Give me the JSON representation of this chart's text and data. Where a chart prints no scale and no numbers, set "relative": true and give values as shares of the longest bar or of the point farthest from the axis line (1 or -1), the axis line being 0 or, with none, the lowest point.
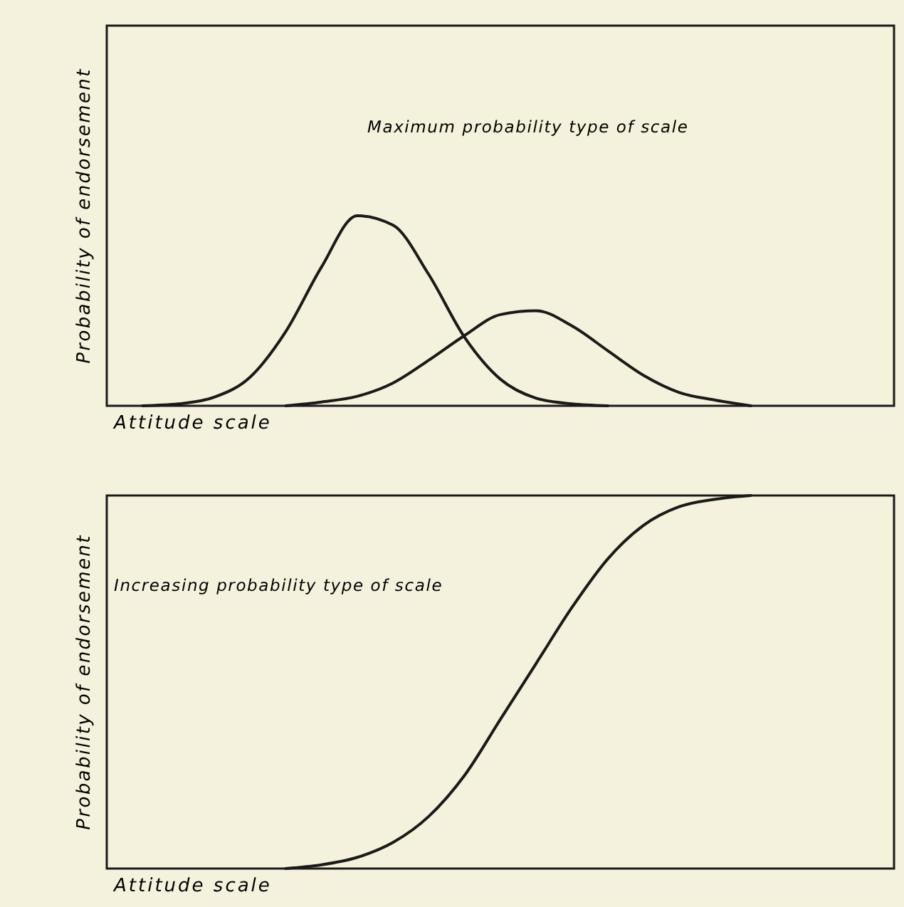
{
  "chart_data": [
    {
      "type": "line",
      "relative": true,
      "categories": [
        null,
        null,
        null,
        null,
        null,
        null,
        null,
        null,
        null,
        null,
        null,
        null,
        null,
        null,
        null,
        null,
        null,
        null,
        null,
        null,
        null,
        null,
        null
      ],
      "xlabel": "Attitude scale",
      "ylabel": "Probability of endorsement",
      "annotations": [
        "Maximum probability type of scale"
      ],
      "grid": false,
      "series": [
        {
          "color": "#1a1a1a",
          "values": [
            null,
            0,
            0.01,
            0.045,
            0.15,
            0.39,
            0.73,
            1,
            0.95,
            0.69,
            0.36,
            0.14,
            0.04,
            0.01,
            0,
            null,
            null,
            null,
            null,
            null,
            null,
            null,
            null
          ]
        },
        {
          "color": "#1a1a1a",
          "values": [
            null,
            null,
            null,
            null,
            null,
            0,
            0.02,
            0.05,
            0.12,
            0.24,
            0.37,
            0.48,
            0.5,
            0.42,
            0.29,
            0.16,
            0.07,
            0.03,
            0,
            null,
            null,
            null,
            null
          ]
        }
      ]
    },
    {
      "type": "line",
      "relative": true,
      "categories": [
        null,
        null,
        null,
        null,
        null,
        null,
        null,
        null,
        null,
        null,
        null,
        null,
        null,
        null,
        null,
        null,
        null,
        null,
        null,
        null,
        null,
        null,
        null
      ],
      "xlabel": "Attitude scale",
      "ylabel": "Probability of endorsement",
      "annotations": [
        "Increasing probability type of scale"
      ],
      "grid": false,
      "series": [
        {
          "color": "#1a1a1a",
          "values": [
            null,
            null,
            null,
            null,
            null,
            0,
            0.01,
            0.03,
            0.07,
            0.14,
            0.25,
            0.4,
            0.55,
            0.7,
            0.83,
            0.92,
            0.97,
            0.99,
            1,
            null,
            null,
            null,
            null
          ]
        }
      ]
    }
  ]
}
